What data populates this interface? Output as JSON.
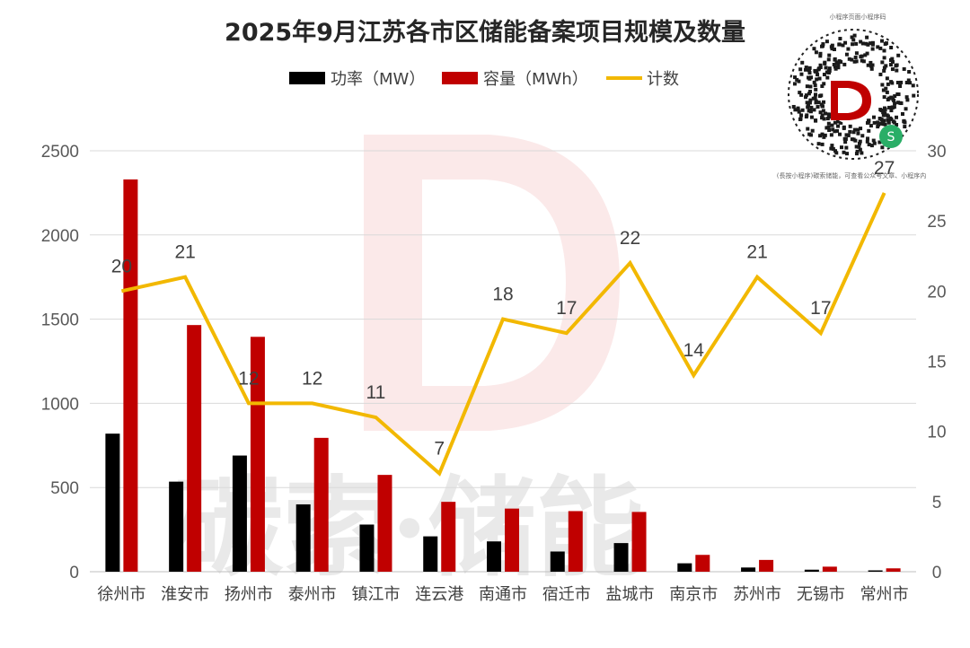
{
  "colors": {
    "power": "#000000",
    "capacity": "#c00000",
    "count": "#f2b800",
    "grid": "#d9d9d9"
  },
  "qr": {
    "caption_top": "小程序页面小程序码",
    "caption_bottom": "(長按小程序)碳索储能，可查看公众号文章、小程序内"
  },
  "watermark": {
    "text": "碳索·储能"
  },
  "chart_data": {
    "type": "bar",
    "title": "2025年9月江苏各市区储能备案项目规模及数量",
    "categories": [
      "徐州市",
      "淮安市",
      "扬州市",
      "泰州市",
      "镇江市",
      "连云港",
      "南通市",
      "宿迁市",
      "盐城市",
      "南京市",
      "苏州市",
      "无锡市",
      "常州市"
    ],
    "series": [
      {
        "name": "功率（MW）",
        "type": "bar",
        "axis": "left",
        "values": [
          820,
          535,
          690,
          400,
          280,
          210,
          180,
          120,
          170,
          50,
          25,
          12,
          8
        ]
      },
      {
        "name": "容量（MWh）",
        "type": "bar",
        "axis": "left",
        "values": [
          2330,
          1465,
          1395,
          795,
          575,
          415,
          375,
          360,
          355,
          100,
          70,
          30,
          20
        ]
      },
      {
        "name": "计数",
        "type": "line",
        "axis": "right",
        "values": [
          20,
          21,
          12,
          12,
          11,
          7,
          18,
          17,
          22,
          14,
          21,
          17,
          27
        ]
      }
    ],
    "left_axis": {
      "ticks": [
        "0",
        "500",
        "1000",
        "1500",
        "2000",
        "2500"
      ],
      "ylim": [
        0,
        2500
      ]
    },
    "right_axis": {
      "ticks": [
        "0",
        "5",
        "10",
        "15",
        "20",
        "25",
        "30"
      ],
      "ylim": [
        0,
        30
      ]
    },
    "legend_position": "top",
    "grid": true
  }
}
